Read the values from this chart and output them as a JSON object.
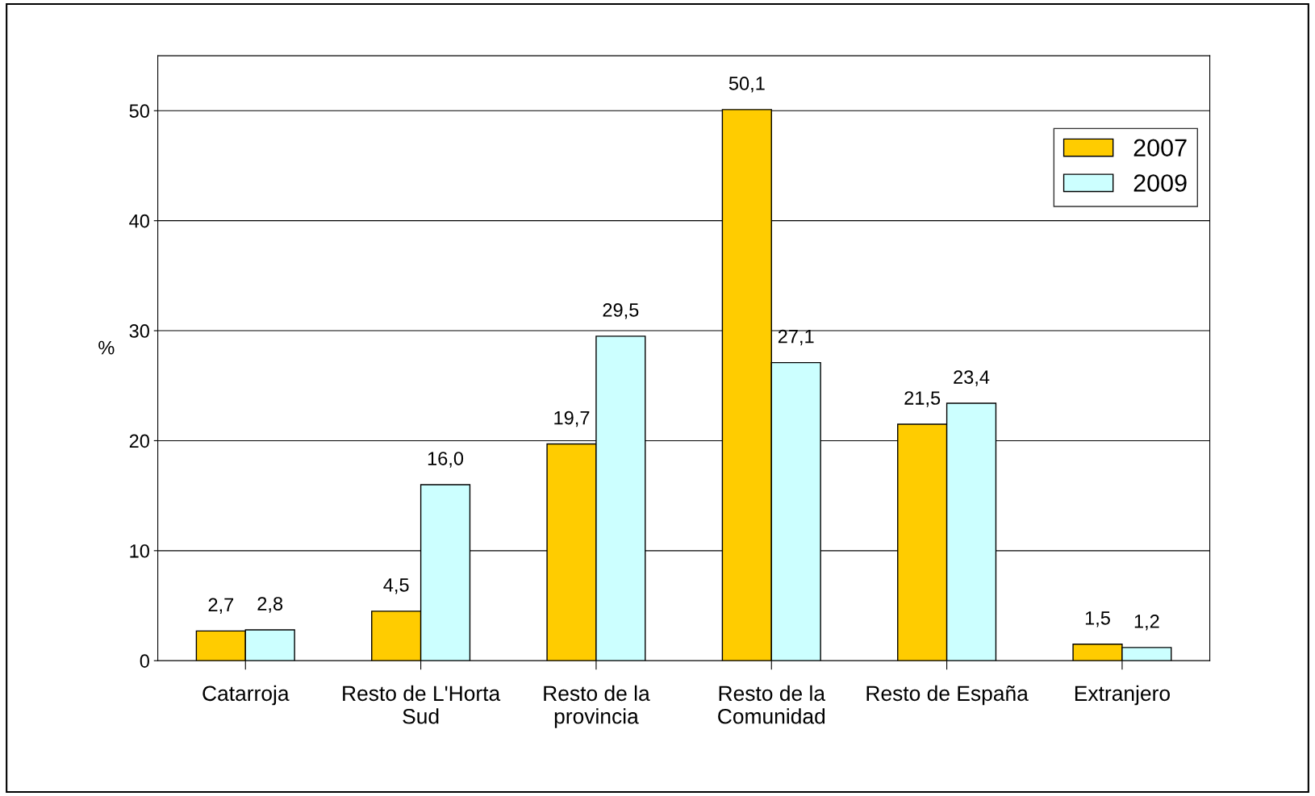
{
  "chart_data": {
    "type": "bar",
    "ylabel": "%",
    "categories": [
      "Catarroja",
      "Resto de L'Horta\nSud",
      "Resto de la\nprovincia",
      "Resto de la\nComunidad",
      "Resto de España",
      "Extranjero"
    ],
    "series": [
      {
        "name": "2007",
        "color": "#ffcc00",
        "values": [
          2.7,
          4.5,
          19.7,
          50.1,
          21.5,
          1.5
        ],
        "value_labels": [
          "2,7",
          "4,5",
          "19,7",
          "50,1",
          "21,5",
          "1,5"
        ]
      },
      {
        "name": "2009",
        "color": "#ccffff",
        "values": [
          2.8,
          16.0,
          29.5,
          27.1,
          23.4,
          1.2
        ],
        "value_labels": [
          "2,8",
          "16,0",
          "29,5",
          "27,1",
          "23,4",
          "1,2"
        ]
      }
    ],
    "ylim": [
      0,
      55
    ],
    "yticks": [
      0,
      10,
      20,
      30,
      40,
      50
    ],
    "grid": "y",
    "legend": "top right"
  }
}
